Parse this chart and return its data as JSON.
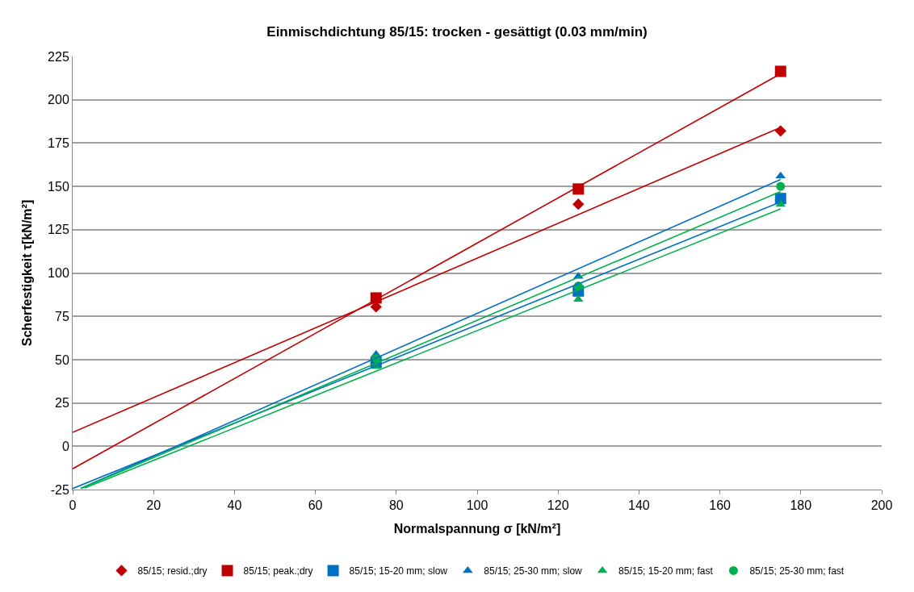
{
  "chart_data": {
    "type": "scatter",
    "title": "Einmischdichtung 85/15: trocken - gesättigt (0.03 mm/min)",
    "xlabel": "Normalspannung σ [kN/m²]",
    "ylabel": "Scherfestigkeit τ[kN/m²]",
    "xlim": [
      0,
      200
    ],
    "xticks": [
      0,
      20,
      40,
      60,
      80,
      100,
      120,
      140,
      160,
      180,
      200
    ],
    "ylim": [
      -25,
      225
    ],
    "yticks": [
      -25,
      0,
      25,
      50,
      75,
      100,
      125,
      150,
      175,
      200,
      225
    ],
    "grid": "y",
    "legend": "bottom",
    "series": [
      {
        "name": "85/15; resid.;dry",
        "color": "#c00000",
        "marker": "diamond",
        "x": [
          75,
          125,
          175
        ],
        "values": [
          80.5,
          139.7,
          182
        ]
      },
      {
        "name": "85/15; peak.;dry",
        "color": "#c00000",
        "marker": "square",
        "x": [
          75,
          125,
          175
        ],
        "values": [
          85.6,
          148.5,
          216.4
        ]
      },
      {
        "name": "85/15; 15-20 mm; slow",
        "color": "#0070c0",
        "marker": "square",
        "x": [
          75,
          125,
          175
        ],
        "values": [
          48.5,
          89.6,
          143
        ]
      },
      {
        "name": "85/15; 25-30 mm; slow",
        "color": "#0070c0",
        "marker": "triangle",
        "x": [
          75,
          125,
          175
        ],
        "values": [
          53,
          98,
          156
        ]
      },
      {
        "name": "85/15; 15-20 mm; fast",
        "color": "#00b050",
        "marker": "triangle",
        "x": [
          75,
          125,
          175
        ],
        "values": [
          46,
          84.8,
          139.6
        ]
      },
      {
        "name": "85/15; 25-30 mm; fast",
        "color": "#00b050",
        "marker": "circle",
        "x": [
          75,
          125,
          175
        ],
        "values": [
          50.7,
          92.5,
          150
        ]
      },
      {
        "type": "line",
        "color": "#c00000",
        "marker": "none",
        "x": [
          0,
          175
        ],
        "values": [
          8,
          184
        ]
      },
      {
        "type": "line",
        "color": "#c00000",
        "marker": "none",
        "x": [
          0,
          175
        ],
        "values": [
          -13,
          215
        ]
      },
      {
        "type": "line",
        "color": "#0070c0",
        "marker": "none",
        "x": [
          0,
          175
        ],
        "values": [
          -24.4,
          141
        ]
      },
      {
        "type": "line",
        "color": "#0070c0",
        "marker": "none",
        "x": [
          2,
          175
        ],
        "values": [
          -24.3,
          154
        ]
      },
      {
        "type": "line",
        "color": "#00b050",
        "marker": "none",
        "x": [
          3,
          175
        ],
        "values": [
          -24.1,
          137
        ]
      },
      {
        "type": "line",
        "color": "#00b050",
        "marker": "none",
        "x": [
          2,
          175
        ],
        "values": [
          -24.4,
          147
        ]
      }
    ]
  }
}
